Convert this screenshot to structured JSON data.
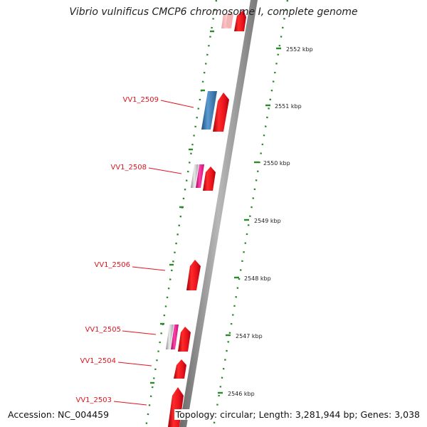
{
  "title": "Vibrio vulnificus CMCP6 chromosome I, complete genome",
  "footer": {
    "accession": "Accession: NC_004459",
    "summary": "Topology: circular; Length: 3,281,944 bp; Genes: 3,038"
  },
  "scale": {
    "unit": "kbp",
    "ticks": [
      "2546 kbp",
      "2547 kbp",
      "2548 kbp",
      "2549 kbp",
      "2550 kbp",
      "2551 kbp",
      "2552 kbp"
    ]
  },
  "genes": [
    "VV1_2503",
    "VV1_2504",
    "VV1_2505",
    "VV1_2506",
    "VV1_2508",
    "VV1_2509"
  ],
  "colors": {
    "gene_red": "#e8141c",
    "gene_blue": "#3a78b0",
    "gene_magenta": "#e0208a",
    "gene_grey": "#b4b4b4",
    "label_red": "#e0141e",
    "tick_green": "#2a8a2a",
    "backbone": "#8a8a8a"
  }
}
